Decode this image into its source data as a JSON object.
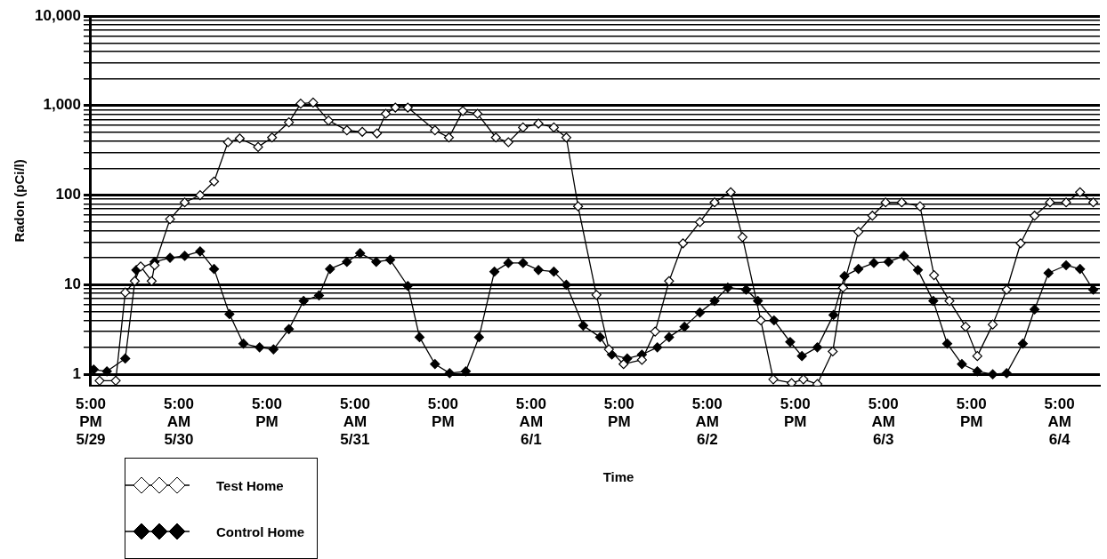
{
  "chart_data": {
    "type": "line",
    "xlabel": "Time",
    "ylabel": "Radon (pCi/l)",
    "log": "y",
    "grid": "y",
    "legend": "bottom left",
    "marker": "diamond",
    "line_style": "solid",
    "xlim": [
      "--05-29T17:00",
      "--06-04T10:30"
    ],
    "xticks": [
      {
        "value": "--05-29T17:00",
        "label": "5:00\nPM\n5/29"
      },
      {
        "value": "--05-30T05:00",
        "label": "5:00\nAM\n5/30"
      },
      {
        "value": "--05-30T17:00",
        "label": "5:00\nPM"
      },
      {
        "value": "--05-31T05:00",
        "label": "5:00\nAM\n5/31"
      },
      {
        "value": "--05-31T17:00",
        "label": "5:00\nPM"
      },
      {
        "value": "--06-01T05:00",
        "label": "5:00\nAM\n6/1"
      },
      {
        "value": "--06-01T17:00",
        "label": "5:00\nPM"
      },
      {
        "value": "--06-02T05:00",
        "label": "5:00\nAM\n6/2"
      },
      {
        "value": "--06-02T17:00",
        "label": "5:00\nPM"
      },
      {
        "value": "--06-03T05:00",
        "label": "5:00\nAM\n6/3"
      },
      {
        "value": "--06-03T17:00",
        "label": "5:00\nPM"
      },
      {
        "value": "--06-04T05:00",
        "label": "5:00\nAM\n6/4"
      }
    ],
    "ylim": [
      0.75,
      10000
    ],
    "yticks": [
      1,
      {
        "value": 2,
        "label": null
      },
      {
        "value": 3,
        "label": null
      },
      {
        "value": 4,
        "label": null
      },
      {
        "value": 5,
        "label": null
      },
      {
        "value": 6,
        "label": null
      },
      {
        "value": 7,
        "label": null
      },
      {
        "value": 8,
        "label": null
      },
      {
        "value": 9,
        "label": null
      },
      10,
      {
        "value": 20,
        "label": null
      },
      {
        "value": 30,
        "label": null
      },
      {
        "value": 40,
        "label": null
      },
      {
        "value": 50,
        "label": null
      },
      {
        "value": 60,
        "label": null
      },
      {
        "value": 70,
        "label": null
      },
      {
        "value": 80,
        "label": null
      },
      {
        "value": 90,
        "label": null
      },
      100,
      {
        "value": 200,
        "label": null
      },
      {
        "value": 300,
        "label": null
      },
      {
        "value": 400,
        "label": null
      },
      {
        "value": 500,
        "label": null
      },
      {
        "value": 600,
        "label": null
      },
      {
        "value": 700,
        "label": null
      },
      {
        "value": 800,
        "label": null
      },
      {
        "value": 900,
        "label": null
      },
      {
        "value": 1000,
        "label": "1,000"
      },
      {
        "value": 2000,
        "label": null
      },
      {
        "value": 3000,
        "label": null
      },
      {
        "value": 4000,
        "label": null
      },
      {
        "value": 5000,
        "label": null
      },
      {
        "value": 6000,
        "label": null
      },
      {
        "value": 7000,
        "label": null
      },
      {
        "value": 8000,
        "label": null
      },
      {
        "value": 9000,
        "label": null
      },
      {
        "value": 10000,
        "label": "10,000"
      }
    ],
    "series": [
      {
        "name": "Test Home",
        "color": "#000000",
        "x": [
          "--05-29T18:12",
          "--05-29T20:24",
          "--05-29T21:42",
          "--05-29T23:00",
          "--05-29T23:48",
          "--05-30T01:18",
          "--05-30T01:42",
          "--05-30T03:48",
          "--05-30T05:48",
          "--05-30T07:54",
          "--05-30T09:48",
          "--05-30T11:42",
          "--05-30T13:18",
          "--05-30T15:48",
          "--05-30T17:42",
          "--05-30T20:00",
          "--05-30T21:36",
          "--05-30T23:18",
          "--05-31T01:24",
          "--05-31T03:54",
          "--05-31T06:00",
          "--05-31T08:00",
          "--05-31T09:12",
          "--05-31T10:30",
          "--05-31T12:12",
          "--05-31T15:54",
          "--05-31T17:48",
          "--05-31T19:42",
          "--05-31T21:42",
          "--06-01T00:12",
          "--06-01T01:54",
          "--06-01T03:54",
          "--06-01T06:00",
          "--06-01T08:06",
          "--06-01T09:48",
          "--06-01T11:24",
          "--06-01T13:54",
          "--06-01T15:36",
          "--06-01T17:36",
          "--06-01T20:06",
          "--06-01T21:54",
          "--06-01T23:48",
          "--06-02T01:42",
          "--06-02T04:00",
          "--06-02T06:00",
          "--06-02T08:12",
          "--06-02T09:48",
          "--06-02T12:18",
          "--06-02T14:00",
          "--06-02T16:30",
          "--06-02T18:06",
          "--06-02T20:00",
          "--06-02T22:06",
          "--06-02T23:30",
          "--06-03T01:36",
          "--06-03T03:30",
          "--06-03T05:18",
          "--06-03T07:30",
          "--06-03T10:00",
          "--06-03T11:54",
          "--06-03T14:00",
          "--06-03T16:12",
          "--06-03T17:48",
          "--06-03T19:54",
          "--06-03T21:48",
          "--06-03T23:42",
          "--06-04T01:36",
          "--06-04T03:42",
          "--06-04T05:54",
          "--06-04T07:48",
          "--06-04T09:36"
        ],
        "values": [
          0.85,
          0.85,
          8.2,
          11,
          16,
          11,
          16.5,
          54,
          83,
          100,
          142,
          390,
          430,
          345,
          440,
          650,
          1050,
          1080,
          680,
          530,
          510,
          490,
          810,
          950,
          950,
          530,
          440,
          870,
          810,
          440,
          390,
          570,
          630,
          570,
          440,
          75,
          7.7,
          1.9,
          1.3,
          1.45,
          3,
          11,
          29,
          50,
          83,
          108,
          34,
          4,
          0.88,
          0.8,
          0.88,
          0.78,
          1.8,
          9.3,
          39,
          59,
          83,
          83,
          75,
          12.8,
          6.6,
          3.4,
          1.6,
          3.6,
          8.8,
          29,
          59,
          83,
          83,
          108,
          83
        ]
      },
      {
        "name": "Control Home",
        "color": "#000000",
        "x": [
          "--05-29T17:24",
          "--05-29T19:12",
          "--05-29T21:42",
          "--05-29T23:12",
          "--05-30T01:42",
          "--05-30T03:48",
          "--05-30T05:48",
          "--05-30T07:54",
          "--05-30T09:48",
          "--05-30T11:54",
          "--05-30T13:48",
          "--05-30T16:00",
          "--05-30T17:54",
          "--05-30T20:00",
          "--05-30T22:00",
          "--05-31T00:06",
          "--05-31T01:36",
          "--05-31T03:54",
          "--05-31T05:42",
          "--05-31T07:54",
          "--05-31T09:48",
          "--05-31T12:12",
          "--05-31T13:48",
          "--05-31T15:54",
          "--05-31T17:54",
          "--05-31T20:06",
          "--05-31T21:54",
          "--06-01T00:00",
          "--06-01T01:54",
          "--06-01T03:54",
          "--06-01T06:00",
          "--06-01T08:06",
          "--06-01T09:48",
          "--06-01T12:06",
          "--06-01T14:24",
          "--06-01T16:00",
          "--06-01T18:06",
          "--06-01T20:06",
          "--06-01T22:12",
          "--06-01T23:48",
          "--06-02T01:54",
          "--06-02T04:00",
          "--06-02T06:00",
          "--06-02T07:48",
          "--06-02T10:18",
          "--06-02T11:54",
          "--06-02T14:06",
          "--06-02T16:18",
          "--06-02T17:54",
          "--06-02T20:00",
          "--06-02T22:12",
          "--06-02T23:42",
          "--06-03T01:36",
          "--06-03T03:42",
          "--06-03T05:42",
          "--06-03T07:48",
          "--06-03T09:42",
          "--06-03T11:48",
          "--06-03T13:42",
          "--06-03T15:42",
          "--06-03T17:48",
          "--06-03T19:54",
          "--06-03T21:48",
          "--06-04T00:00",
          "--06-04T01:36",
          "--06-04T03:30",
          "--06-04T05:54",
          "--06-04T07:48",
          "--06-04T09:36"
        ],
        "values": [
          1.13,
          1.08,
          1.5,
          14.6,
          18,
          20,
          21,
          23.6,
          15,
          4.7,
          2.2,
          2.0,
          1.9,
          3.2,
          6.6,
          7.6,
          15,
          18,
          22.5,
          18,
          19,
          9.7,
          2.6,
          1.3,
          1.03,
          1.08,
          2.6,
          14,
          17.5,
          17.5,
          14.6,
          14,
          10,
          3.5,
          2.6,
          1.66,
          1.5,
          1.66,
          2,
          2.6,
          3.4,
          4.9,
          6.6,
          9.3,
          8.8,
          6.6,
          4,
          2.3,
          1.6,
          2.0,
          4.6,
          12.5,
          15,
          17.5,
          18,
          21,
          14.6,
          6.6,
          2.2,
          1.3,
          1.08,
          1.0,
          1.03,
          2.2,
          5.3,
          13.5,
          16.5,
          15,
          8.8
        ]
      }
    ]
  }
}
